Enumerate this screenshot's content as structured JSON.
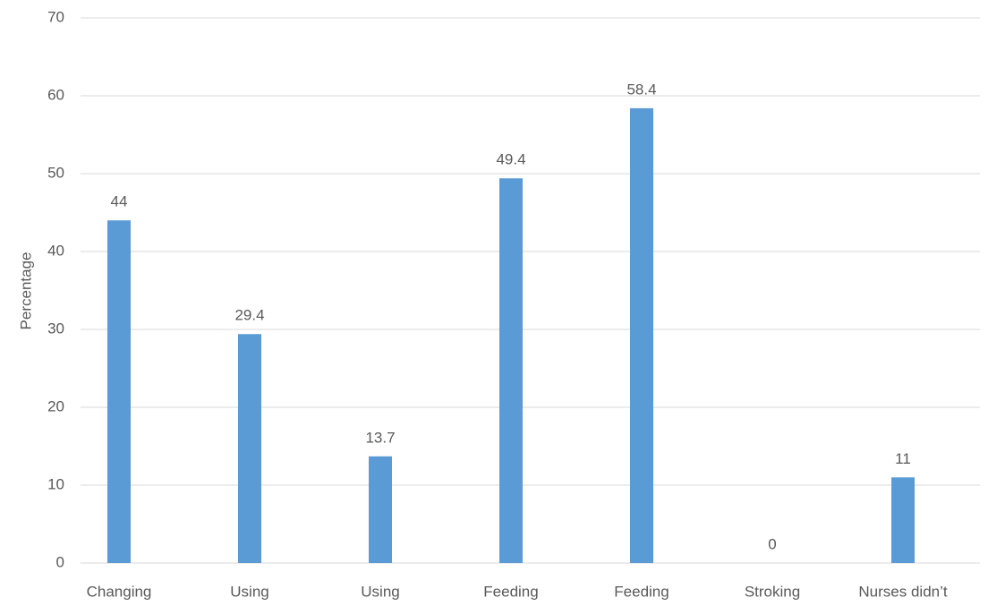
{
  "chart_data": {
    "type": "bar",
    "y_label": "Percentage",
    "categories": [
      "Changing",
      "Using",
      "Using",
      "Feeding",
      "Feeding",
      "Stroking",
      "Nurses didn’t"
    ],
    "values": [
      44,
      29.4,
      13.7,
      49.4,
      58.4,
      0,
      11
    ],
    "color": "#5b9bd5",
    "ylim": [
      0,
      70
    ],
    "yticks": [
      0,
      10,
      20,
      30,
      40,
      50,
      60,
      70
    ],
    "grid": true
  }
}
